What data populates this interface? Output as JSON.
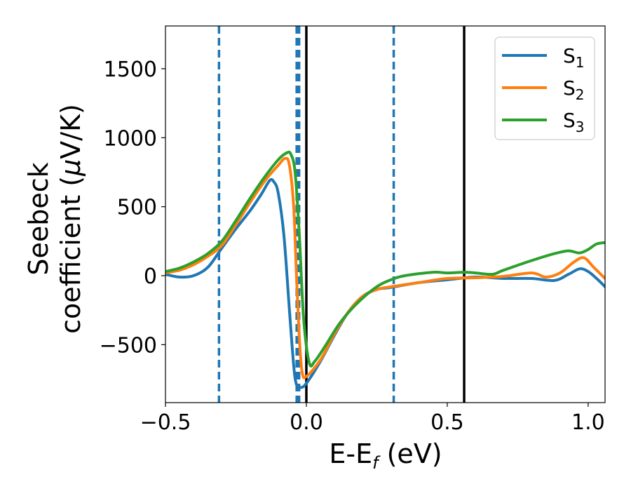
{
  "chart_data": {
    "type": "line",
    "xlabel": {
      "main": "E-E",
      "sub": "f",
      "unit": " (eV)"
    },
    "ylabel": {
      "line1": "Seebeck",
      "line2_pre": "coefficient  (",
      "mu": "μ",
      "line2_post": "V/K)"
    },
    "xlim": [
      -0.5,
      1.06
    ],
    "ylim": [
      -920,
      1810
    ],
    "xticks": [
      {
        "value": -0.5,
        "label": "−0.5"
      },
      {
        "value": 0.0,
        "label": "0.0"
      },
      {
        "value": 0.5,
        "label": "0.5"
      },
      {
        "value": 1.0,
        "label": "1.0"
      }
    ],
    "yticks": [
      {
        "value": -500,
        "label": "−500"
      },
      {
        "value": 0,
        "label": "0"
      },
      {
        "value": 500,
        "label": "500"
      },
      {
        "value": 1000,
        "label": "1000"
      },
      {
        "value": 1500,
        "label": "1500"
      }
    ],
    "legend_position": "top-right",
    "vlines": [
      {
        "x": -0.31,
        "color": "#1f77b4",
        "style": "dashed",
        "width": 3.5
      },
      {
        "x": -0.03,
        "color": "#1f77b4",
        "style": "dashed",
        "width": 7
      },
      {
        "x": 0.31,
        "color": "#1f77b4",
        "style": "dashed",
        "width": 3.5
      },
      {
        "x": 0.0,
        "color": "#000000",
        "style": "solid",
        "width": 3.5
      },
      {
        "x": 0.56,
        "color": "#000000",
        "style": "solid",
        "width": 3.5
      }
    ],
    "series": [
      {
        "name": "S",
        "sub": "1",
        "color": "#1f77b4",
        "points": [
          [
            -0.5,
            10
          ],
          [
            -0.45,
            -10
          ],
          [
            -0.4,
            0
          ],
          [
            -0.35,
            60
          ],
          [
            -0.3,
            200
          ],
          [
            -0.25,
            340
          ],
          [
            -0.2,
            470
          ],
          [
            -0.16,
            590
          ],
          [
            -0.13,
            690
          ],
          [
            -0.115,
            680
          ],
          [
            -0.1,
            600
          ],
          [
            -0.08,
            300
          ],
          [
            -0.06,
            -250
          ],
          [
            -0.045,
            -650
          ],
          [
            -0.035,
            -790
          ],
          [
            -0.02,
            -810
          ],
          [
            0.0,
            -780
          ],
          [
            0.05,
            -620
          ],
          [
            0.1,
            -430
          ],
          [
            0.15,
            -260
          ],
          [
            0.2,
            -150
          ],
          [
            0.25,
            -100
          ],
          [
            0.3,
            -85
          ],
          [
            0.4,
            -50
          ],
          [
            0.5,
            -30
          ],
          [
            0.6,
            -10
          ],
          [
            0.7,
            -20
          ],
          [
            0.8,
            -20
          ],
          [
            0.88,
            -35
          ],
          [
            0.93,
            10
          ],
          [
            0.97,
            50
          ],
          [
            1.0,
            30
          ],
          [
            1.03,
            -20
          ],
          [
            1.06,
            -80
          ]
        ]
      },
      {
        "name": "S",
        "sub": "2",
        "color": "#ff7f0e",
        "points": [
          [
            -0.5,
            20
          ],
          [
            -0.45,
            40
          ],
          [
            -0.4,
            80
          ],
          [
            -0.35,
            140
          ],
          [
            -0.3,
            220
          ],
          [
            -0.25,
            370
          ],
          [
            -0.2,
            530
          ],
          [
            -0.15,
            680
          ],
          [
            -0.1,
            800
          ],
          [
            -0.075,
            850
          ],
          [
            -0.06,
            800
          ],
          [
            -0.045,
            500
          ],
          [
            -0.035,
            0
          ],
          [
            -0.025,
            -450
          ],
          [
            -0.015,
            -700
          ],
          [
            0.0,
            -730
          ],
          [
            0.05,
            -610
          ],
          [
            0.1,
            -420
          ],
          [
            0.15,
            -260
          ],
          [
            0.2,
            -150
          ],
          [
            0.25,
            -100
          ],
          [
            0.3,
            -80
          ],
          [
            0.4,
            -50
          ],
          [
            0.5,
            -20
          ],
          [
            0.6,
            -15
          ],
          [
            0.7,
            -5
          ],
          [
            0.8,
            20
          ],
          [
            0.85,
            -10
          ],
          [
            0.9,
            20
          ],
          [
            0.95,
            100
          ],
          [
            0.985,
            130
          ],
          [
            1.02,
            60
          ],
          [
            1.06,
            -20
          ]
        ]
      },
      {
        "name": "S",
        "sub": "3",
        "color": "#2ca02c",
        "points": [
          [
            -0.5,
            30
          ],
          [
            -0.45,
            55
          ],
          [
            -0.4,
            100
          ],
          [
            -0.35,
            160
          ],
          [
            -0.3,
            250
          ],
          [
            -0.25,
            400
          ],
          [
            -0.2,
            560
          ],
          [
            -0.15,
            710
          ],
          [
            -0.1,
            840
          ],
          [
            -0.07,
            890
          ],
          [
            -0.055,
            880
          ],
          [
            -0.04,
            750
          ],
          [
            -0.025,
            300
          ],
          [
            -0.01,
            -300
          ],
          [
            0.01,
            -630
          ],
          [
            0.03,
            -620
          ],
          [
            0.07,
            -500
          ],
          [
            0.12,
            -340
          ],
          [
            0.18,
            -200
          ],
          [
            0.25,
            -80
          ],
          [
            0.3,
            -30
          ],
          [
            0.35,
            0
          ],
          [
            0.45,
            25
          ],
          [
            0.5,
            20
          ],
          [
            0.56,
            25
          ],
          [
            0.6,
            20
          ],
          [
            0.66,
            10
          ],
          [
            0.7,
            40
          ],
          [
            0.8,
            110
          ],
          [
            0.88,
            160
          ],
          [
            0.93,
            180
          ],
          [
            0.97,
            165
          ],
          [
            1.0,
            190
          ],
          [
            1.03,
            230
          ],
          [
            1.06,
            240
          ]
        ]
      }
    ]
  }
}
